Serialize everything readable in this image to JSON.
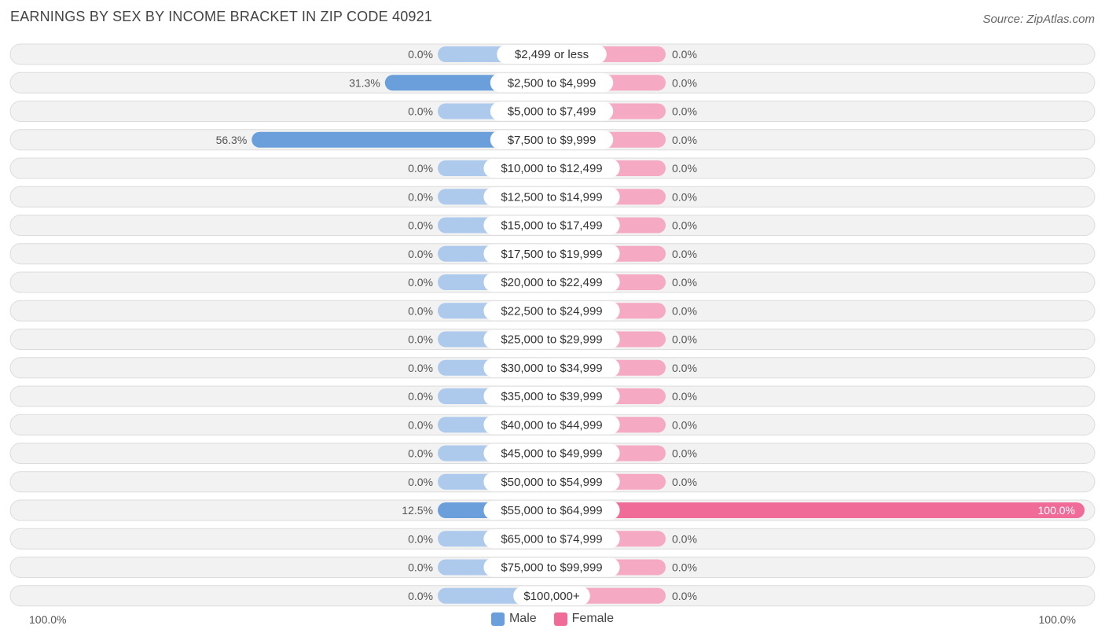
{
  "chart_data": {
    "type": "bar",
    "orientation": "horizontal-diverging",
    "title": "EARNINGS BY SEX BY INCOME BRACKET IN ZIP CODE 40921",
    "source": "Source: ZipAtlas.com",
    "categories": [
      "$2,499 or less",
      "$2,500 to $4,999",
      "$5,000 to $7,499",
      "$7,500 to $9,999",
      "$10,000 to $12,499",
      "$12,500 to $14,999",
      "$15,000 to $17,499",
      "$17,500 to $19,999",
      "$20,000 to $22,499",
      "$22,500 to $24,999",
      "$25,000 to $29,999",
      "$30,000 to $34,999",
      "$35,000 to $39,999",
      "$40,000 to $44,999",
      "$45,000 to $49,999",
      "$50,000 to $54,999",
      "$55,000 to $64,999",
      "$65,000 to $74,999",
      "$75,000 to $99,999",
      "$100,000+"
    ],
    "series": [
      {
        "name": "Male",
        "color": "#6a9fdb",
        "light_color": "#adc9ec",
        "values": [
          0,
          31.3,
          0,
          56.3,
          0,
          0,
          0,
          0,
          0,
          0,
          0,
          0,
          0,
          0,
          0,
          0,
          12.5,
          0,
          0,
          0
        ],
        "labels": [
          "0.0%",
          "31.3%",
          "0.0%",
          "56.3%",
          "0.0%",
          "0.0%",
          "0.0%",
          "0.0%",
          "0.0%",
          "0.0%",
          "0.0%",
          "0.0%",
          "0.0%",
          "0.0%",
          "0.0%",
          "0.0%",
          "12.5%",
          "0.0%",
          "0.0%",
          "0.0%"
        ]
      },
      {
        "name": "Female",
        "color": "#f06b97",
        "light_color": "#f6a9c3",
        "values": [
          0,
          0,
          0,
          0,
          0,
          0,
          0,
          0,
          0,
          0,
          0,
          0,
          0,
          0,
          0,
          0,
          100,
          0,
          0,
          0
        ],
        "labels": [
          "0.0%",
          "0.0%",
          "0.0%",
          "0.0%",
          "0.0%",
          "0.0%",
          "0.0%",
          "0.0%",
          "0.0%",
          "0.0%",
          "0.0%",
          "0.0%",
          "0.0%",
          "0.0%",
          "0.0%",
          "0.0%",
          "100.0%",
          "0.0%",
          "0.0%",
          "0.0%"
        ]
      }
    ],
    "xlim": [
      0,
      100
    ],
    "axis_left_label": "100.0%",
    "axis_right_label": "100.0%",
    "legend_position": "bottom-center"
  }
}
